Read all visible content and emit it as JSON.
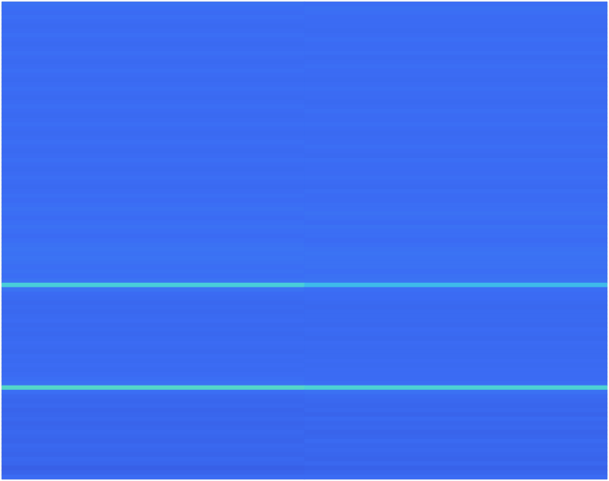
{
  "chart_data": {
    "type": "heatmap",
    "tick_labels": false,
    "zlim": [
      0,
      1
    ],
    "values": [
      [
        0.35,
        0.34
      ],
      [
        0.34,
        0.35
      ],
      [
        0.33,
        0.34
      ],
      [
        0.34,
        0.33
      ],
      [
        0.33,
        0.33
      ],
      [
        0.32,
        0.33
      ],
      [
        0.33,
        0.32
      ],
      [
        0.34,
        0.33
      ],
      [
        0.33,
        0.34
      ],
      [
        0.32,
        0.33
      ],
      [
        0.33,
        0.33
      ],
      [
        0.34,
        0.34
      ],
      [
        0.33,
        0.32
      ],
      [
        0.32,
        0.33
      ],
      [
        0.33,
        0.34
      ],
      [
        0.34,
        0.33
      ],
      [
        0.33,
        0.33
      ],
      [
        0.32,
        0.32
      ],
      [
        0.33,
        0.33
      ],
      [
        0.34,
        0.34
      ],
      [
        0.33,
        0.33
      ],
      [
        0.32,
        0.33
      ],
      [
        0.33,
        0.32
      ],
      [
        0.34,
        0.33
      ],
      [
        0.33,
        0.34
      ],
      [
        0.32,
        0.33
      ],
      [
        0.33,
        0.33
      ],
      [
        0.34,
        0.34
      ],
      [
        0.33,
        0.33
      ],
      [
        0.32,
        0.32
      ],
      [
        0.33,
        0.33
      ],
      [
        0.34,
        0.33
      ],
      [
        0.33,
        0.34
      ],
      [
        0.32,
        0.33
      ],
      [
        0.33,
        0.32
      ],
      [
        0.34,
        0.34
      ],
      [
        0.33,
        0.33
      ],
      [
        0.32,
        0.33
      ],
      [
        0.33,
        0.33
      ],
      [
        0.34,
        0.34
      ],
      [
        0.33,
        0.33
      ],
      [
        0.32,
        0.32
      ],
      [
        0.33,
        0.34
      ],
      [
        0.34,
        0.33
      ],
      [
        0.33,
        0.33
      ],
      [
        0.34,
        0.34
      ],
      [
        0.35,
        0.34
      ],
      [
        0.34,
        0.35
      ],
      [
        0.33,
        0.34
      ],
      [
        0.34,
        0.33
      ],
      [
        0.35,
        0.35
      ],
      [
        0.34,
        0.34
      ],
      [
        0.33,
        0.34
      ],
      [
        0.34,
        0.33
      ],
      [
        0.35,
        0.34
      ],
      [
        0.36,
        0.35
      ],
      [
        0.35,
        0.36
      ],
      [
        0.36,
        0.35
      ],
      [
        0.35,
        0.35
      ],
      [
        0.34,
        0.35
      ],
      [
        0.35,
        0.34
      ],
      [
        0.34,
        0.35
      ],
      [
        0.36,
        0.36
      ],
      [
        0.72,
        0.62
      ],
      [
        0.36,
        0.34
      ],
      [
        0.33,
        0.33
      ],
      [
        0.32,
        0.33
      ],
      [
        0.31,
        0.32
      ],
      [
        0.32,
        0.31
      ],
      [
        0.31,
        0.32
      ],
      [
        0.32,
        0.32
      ],
      [
        0.33,
        0.32
      ],
      [
        0.31,
        0.31
      ],
      [
        0.32,
        0.33
      ],
      [
        0.31,
        0.32
      ],
      [
        0.32,
        0.31
      ],
      [
        0.33,
        0.33
      ],
      [
        0.32,
        0.32
      ],
      [
        0.31,
        0.32
      ],
      [
        0.33,
        0.32
      ],
      [
        0.32,
        0.33
      ],
      [
        0.33,
        0.32
      ],
      [
        0.32,
        0.33
      ],
      [
        0.33,
        0.33
      ],
      [
        0.34,
        0.33
      ],
      [
        0.35,
        0.34
      ],
      [
        0.78,
        0.74
      ],
      [
        0.34,
        0.35
      ],
      [
        0.31,
        0.32
      ],
      [
        0.3,
        0.31
      ],
      [
        0.31,
        0.3
      ],
      [
        0.29,
        0.31
      ],
      [
        0.3,
        0.29
      ],
      [
        0.31,
        0.32
      ],
      [
        0.29,
        0.3
      ],
      [
        0.3,
        0.31
      ],
      [
        0.31,
        0.29
      ],
      [
        0.3,
        0.3
      ],
      [
        0.29,
        0.32
      ],
      [
        0.31,
        0.3
      ],
      [
        0.3,
        0.31
      ],
      [
        0.29,
        0.3
      ],
      [
        0.31,
        0.29
      ],
      [
        0.3,
        0.31
      ],
      [
        0.27,
        0.28
      ],
      [
        0.29,
        0.3
      ],
      [
        0.33,
        0.33
      ]
    ]
  }
}
